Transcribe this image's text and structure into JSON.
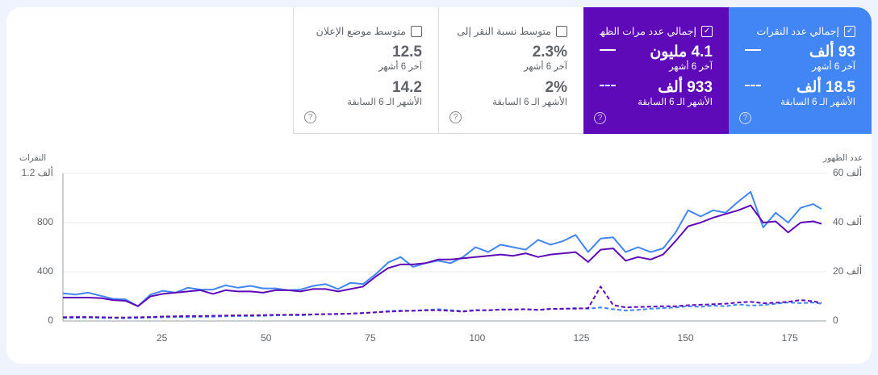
{
  "tiles": [
    {
      "id": "clicks",
      "label": "إجمالي عدد النقرات",
      "checked": true,
      "current_value": "93 ألف",
      "current_caption": "آخر 6 أشهر",
      "previous_value": "18.5 ألف",
      "previous_caption": "الأشهر الـ 6 السابقة",
      "color": "#4285f4"
    },
    {
      "id": "impressions",
      "label": "إجمالي عدد مرات الظهـ...",
      "checked": true,
      "current_value": "4.1 مليون",
      "current_caption": "آخر 6 أشهر",
      "previous_value": "933 ألف",
      "previous_caption": "الأشهر الـ 6 السابقة",
      "color": "#5e0ab8"
    },
    {
      "id": "ctr",
      "label": "متوسط نسبة النقر إلى ا...",
      "checked": false,
      "current_value": "2.3%",
      "current_caption": "آخر 6 أشهر",
      "previous_value": "2%",
      "previous_caption": "الأشهر الـ 6 السابقة",
      "color": "#ffffff"
    },
    {
      "id": "position",
      "label": "متوسط موضع الإعلان",
      "checked": false,
      "current_value": "12.5",
      "current_caption": "آخر 6 أشهر",
      "previous_value": "14.2",
      "previous_caption": "الأشهر الـ 6 السابقة",
      "color": "#ffffff"
    }
  ],
  "icons": {
    "checkbox_checked": "✓",
    "help": "?"
  },
  "chart_data": {
    "type": "line",
    "title": "",
    "xlabel": "",
    "ylabel_left": "النقرات",
    "ylabel_right": "عدد الظهور",
    "left_ticks": [
      "0",
      "400",
      "800",
      "1.2 ألف"
    ],
    "right_ticks": [
      "0",
      "20 ألف",
      "40 ألف",
      "60 ألف"
    ],
    "x_ticks": [
      25,
      50,
      75,
      100,
      125,
      150,
      175
    ],
    "ylim_left": [
      0,
      1200
    ],
    "ylim_right": [
      0,
      60000
    ],
    "xlim": [
      1,
      183
    ],
    "grid": true,
    "x": [
      1,
      4,
      7,
      10,
      13,
      16,
      19,
      22,
      25,
      28,
      31,
      34,
      37,
      40,
      43,
      46,
      49,
      52,
      55,
      58,
      61,
      64,
      67,
      70,
      73,
      76,
      79,
      82,
      85,
      88,
      91,
      94,
      97,
      100,
      103,
      106,
      109,
      112,
      115,
      118,
      121,
      124,
      127,
      130,
      133,
      136,
      139,
      142,
      145,
      148,
      151,
      154,
      157,
      160,
      163,
      166,
      169,
      172,
      175,
      178,
      181,
      183
    ],
    "series": [
      {
        "name": "النقرات (آخر 6 أشهر)",
        "axis": "left",
        "style": "solid",
        "color": "#4285f4",
        "values": [
          225,
          215,
          230,
          205,
          180,
          175,
          120,
          215,
          245,
          230,
          270,
          255,
          255,
          290,
          270,
          285,
          265,
          265,
          250,
          255,
          285,
          300,
          260,
          310,
          300,
          380,
          475,
          520,
          440,
          470,
          490,
          470,
          520,
          600,
          560,
          620,
          600,
          580,
          660,
          620,
          650,
          700,
          560,
          670,
          680,
          560,
          600,
          560,
          590,
          720,
          900,
          850,
          900,
          880,
          970,
          1050,
          760,
          880,
          800,
          920,
          950,
          910
        ],
        "note": "approximate"
      },
      {
        "name": "عدد مرات الظهور (آخر 6 أشهر)",
        "axis": "right",
        "style": "solid",
        "color": "#5e0ab8",
        "values": [
          9500,
          9500,
          9500,
          9300,
          8500,
          8200,
          6000,
          10000,
          11000,
          11500,
          12000,
          12500,
          11000,
          12500,
          12000,
          12000,
          11500,
          12500,
          12500,
          12000,
          13000,
          13000,
          12000,
          13000,
          14000,
          18000,
          21500,
          23000,
          23000,
          23500,
          25000,
          25000,
          25500,
          26000,
          26500,
          27000,
          26500,
          27500,
          26000,
          27000,
          27500,
          28000,
          24000,
          29000,
          29500,
          24500,
          26000,
          25000,
          27000,
          32500,
          38500,
          40000,
          42000,
          43500,
          45000,
          47000,
          40000,
          40500,
          36000,
          40000,
          40500,
          39500
        ],
        "note": "approximate"
      },
      {
        "name": "النقرات (الأشهر الـ 6 السابقة)",
        "axis": "left",
        "style": "dashed",
        "color": "#4285f4",
        "values": [
          25,
          25,
          28,
          25,
          24,
          22,
          25,
          28,
          30,
          32,
          30,
          35,
          35,
          38,
          40,
          40,
          42,
          45,
          48,
          45,
          52,
          55,
          55,
          60,
          65,
          70,
          80,
          85,
          82,
          90,
          95,
          88,
          80,
          90,
          85,
          95,
          92,
          95,
          90,
          100,
          98,
          105,
          100,
          110,
          95,
          85,
          90,
          100,
          105,
          110,
          120,
          115,
          125,
          120,
          135,
          125,
          130,
          140,
          150,
          145,
          150,
          140
        ],
        "note": "approximate"
      },
      {
        "name": "عدد مرات الظهور (الأشهر الـ 6 السابقة)",
        "axis": "right",
        "style": "dashed",
        "color": "#5e0ab8",
        "values": [
          1500,
          1600,
          1600,
          1500,
          1400,
          1400,
          1500,
          1600,
          1800,
          1900,
          2000,
          2000,
          2100,
          2200,
          2300,
          2300,
          2400,
          2500,
          2500,
          2600,
          2700,
          2800,
          2900,
          3000,
          3200,
          3500,
          3800,
          4000,
          4200,
          4300,
          4400,
          4100,
          3800,
          4300,
          4400,
          4600,
          4700,
          4800,
          4500,
          4900,
          5000,
          5000,
          5200,
          14000,
          6500,
          5500,
          5700,
          5800,
          6000,
          6000,
          6400,
          6600,
          6800,
          7000,
          7500,
          7800,
          7200,
          7400,
          7800,
          8500,
          8000,
          7300
        ],
        "note": "approximate"
      }
    ]
  }
}
